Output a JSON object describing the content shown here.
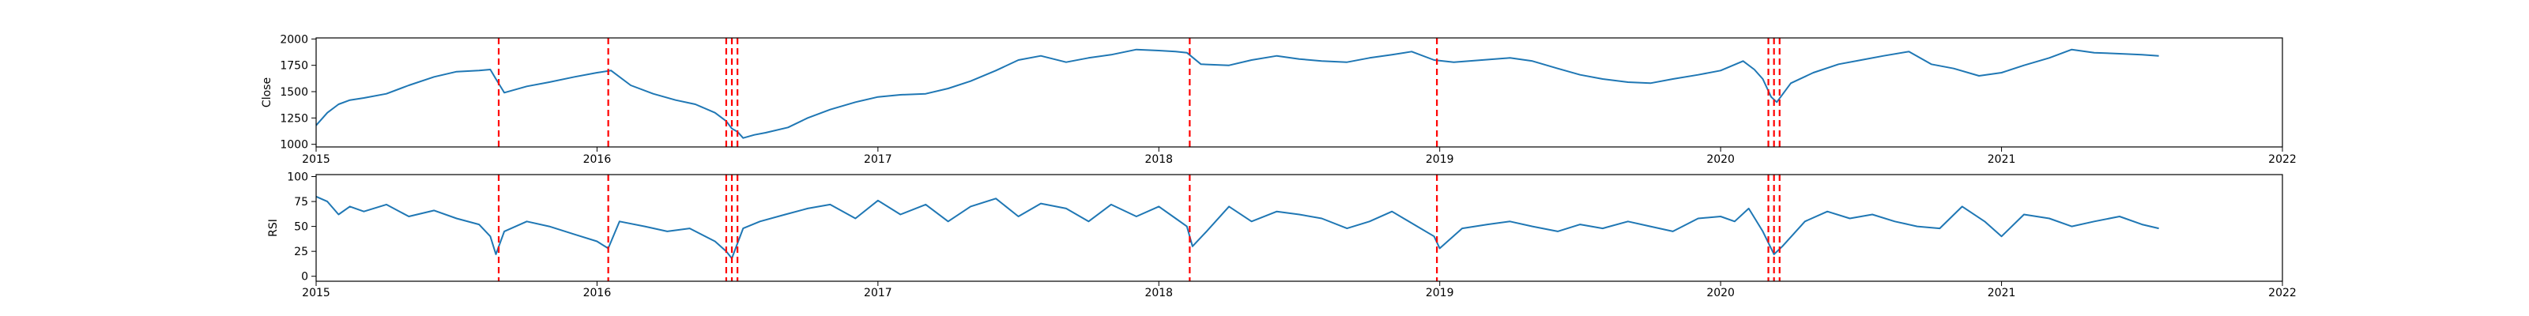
{
  "figure": {
    "background": "#ffffff",
    "line_color": "#1f77b4",
    "event_color": "#ff0000"
  },
  "chart_data": [
    {
      "type": "line",
      "title": "",
      "xlabel": "",
      "ylabel": "Close",
      "xlim": [
        2015.0,
        2022.0
      ],
      "ylim": [
        975,
        2010
      ],
      "x_ticks": [
        2015,
        2016,
        2017,
        2018,
        2019,
        2020,
        2021,
        2022
      ],
      "y_ticks": [
        1000,
        1250,
        1500,
        1750,
        2000
      ],
      "grid": false,
      "legend": "none",
      "series": [
        {
          "x": [
            2015.0,
            2015.04,
            2015.08,
            2015.12,
            2015.17,
            2015.25,
            2015.33,
            2015.42,
            2015.5,
            2015.58,
            2015.62,
            2015.64,
            2015.67,
            2015.75,
            2015.83,
            2015.92,
            2016.0,
            2016.05,
            2016.12,
            2016.2,
            2016.28,
            2016.35,
            2016.42,
            2016.46,
            2016.48,
            2016.5,
            2016.52,
            2016.56,
            2016.6,
            2016.68,
            2016.75,
            2016.83,
            2016.92,
            2017.0,
            2017.08,
            2017.17,
            2017.25,
            2017.33,
            2017.42,
            2017.5,
            2017.58,
            2017.67,
            2017.75,
            2017.83,
            2017.92,
            2018.0,
            2018.06,
            2018.1,
            2018.15,
            2018.25,
            2018.33,
            2018.42,
            2018.5,
            2018.58,
            2018.67,
            2018.75,
            2018.83,
            2018.9,
            2018.98,
            2019.05,
            2019.15,
            2019.25,
            2019.33,
            2019.42,
            2019.5,
            2019.58,
            2019.67,
            2019.75,
            2019.83,
            2019.92,
            2020.0,
            2020.08,
            2020.12,
            2020.15,
            2020.18,
            2020.2,
            2020.25,
            2020.33,
            2020.42,
            2020.5,
            2020.58,
            2020.67,
            2020.75,
            2020.83,
            2020.92,
            2021.0,
            2021.08,
            2021.17,
            2021.25,
            2021.33,
            2021.42,
            2021.5,
            2021.56
          ],
          "y": [
            1180,
            1300,
            1380,
            1420,
            1440,
            1480,
            1560,
            1640,
            1690,
            1700,
            1710,
            1620,
            1490,
            1550,
            1590,
            1640,
            1680,
            1700,
            1560,
            1480,
            1420,
            1380,
            1300,
            1220,
            1150,
            1120,
            1060,
            1090,
            1110,
            1160,
            1250,
            1330,
            1400,
            1450,
            1470,
            1480,
            1530,
            1600,
            1700,
            1800,
            1840,
            1780,
            1820,
            1850,
            1900,
            1890,
            1880,
            1870,
            1760,
            1750,
            1800,
            1840,
            1810,
            1790,
            1780,
            1820,
            1850,
            1880,
            1800,
            1780,
            1800,
            1820,
            1790,
            1720,
            1660,
            1620,
            1590,
            1580,
            1620,
            1660,
            1700,
            1790,
            1710,
            1620,
            1450,
            1400,
            1580,
            1680,
            1760,
            1800,
            1840,
            1880,
            1760,
            1720,
            1650,
            1680,
            1750,
            1820,
            1900,
            1870,
            1860,
            1850,
            1840
          ]
        }
      ],
      "event_lines_x": [
        2015.65,
        2016.04,
        2016.46,
        2016.48,
        2016.5,
        2018.11,
        2018.99,
        2020.17,
        2020.19,
        2020.21
      ]
    },
    {
      "type": "line",
      "title": "",
      "xlabel": "",
      "ylabel": "RSI",
      "xlim": [
        2015.0,
        2022.0
      ],
      "ylim": [
        -5,
        102
      ],
      "x_ticks": [
        2015,
        2016,
        2017,
        2018,
        2019,
        2020,
        2021,
        2022
      ],
      "y_ticks": [
        0,
        25,
        50,
        75,
        100
      ],
      "grid": false,
      "legend": "none",
      "series": [
        {
          "x": [
            2015.0,
            2015.04,
            2015.08,
            2015.12,
            2015.17,
            2015.25,
            2015.33,
            2015.42,
            2015.5,
            2015.58,
            2015.62,
            2015.64,
            2015.67,
            2015.75,
            2015.83,
            2015.92,
            2016.0,
            2016.04,
            2016.08,
            2016.17,
            2016.25,
            2016.33,
            2016.42,
            2016.46,
            2016.48,
            2016.52,
            2016.58,
            2016.67,
            2016.75,
            2016.83,
            2016.92,
            2017.0,
            2017.08,
            2017.17,
            2017.25,
            2017.33,
            2017.42,
            2017.5,
            2017.58,
            2017.67,
            2017.75,
            2017.83,
            2017.92,
            2018.0,
            2018.06,
            2018.1,
            2018.12,
            2018.17,
            2018.25,
            2018.33,
            2018.42,
            2018.5,
            2018.58,
            2018.67,
            2018.75,
            2018.83,
            2018.92,
            2018.98,
            2019.0,
            2019.08,
            2019.17,
            2019.25,
            2019.33,
            2019.42,
            2019.5,
            2019.58,
            2019.67,
            2019.75,
            2019.83,
            2019.92,
            2020.0,
            2020.05,
            2020.1,
            2020.15,
            2020.19,
            2020.22,
            2020.3,
            2020.38,
            2020.46,
            2020.54,
            2020.62,
            2020.7,
            2020.78,
            2020.86,
            2020.94,
            2021.0,
            2021.08,
            2021.17,
            2021.25,
            2021.33,
            2021.42,
            2021.5,
            2021.56
          ],
          "y": [
            80,
            75,
            62,
            70,
            65,
            72,
            60,
            66,
            58,
            52,
            40,
            22,
            45,
            55,
            50,
            42,
            35,
            28,
            55,
            50,
            45,
            48,
            35,
            25,
            18,
            48,
            55,
            62,
            68,
            72,
            58,
            76,
            62,
            72,
            55,
            70,
            78,
            60,
            73,
            68,
            55,
            72,
            60,
            70,
            58,
            50,
            30,
            45,
            70,
            55,
            65,
            62,
            58,
            48,
            55,
            65,
            50,
            40,
            28,
            48,
            52,
            55,
            50,
            45,
            52,
            48,
            55,
            50,
            45,
            58,
            60,
            55,
            68,
            45,
            22,
            30,
            55,
            65,
            58,
            62,
            55,
            50,
            48,
            70,
            55,
            40,
            62,
            58,
            50,
            55,
            60,
            52,
            48
          ]
        }
      ],
      "event_lines_x": [
        2015.65,
        2016.04,
        2016.46,
        2016.48,
        2016.5,
        2018.11,
        2018.99,
        2020.17,
        2020.19,
        2020.21
      ]
    }
  ]
}
